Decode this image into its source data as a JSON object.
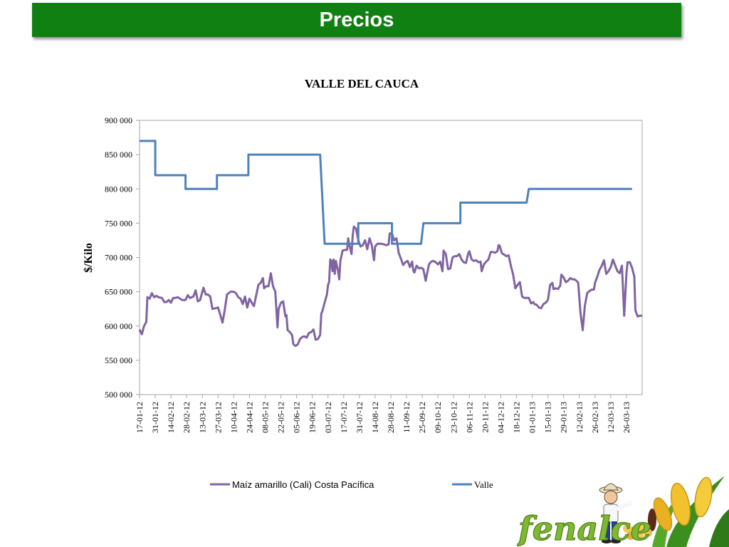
{
  "slide": {
    "title": "Precios"
  },
  "chart_data": {
    "type": "line",
    "title": "VALLE DEL CAUCA",
    "ylabel": "$/Kilo",
    "xlabel": "",
    "ylim": [
      500000,
      900000
    ],
    "yticks": [
      500000,
      550000,
      600000,
      650000,
      700000,
      750000,
      800000,
      850000,
      900000
    ],
    "ytick_labels": [
      "500 000",
      "550 000",
      "600 000",
      "650 000",
      "700 000",
      "750 000",
      "800 000",
      "850 000",
      "900 000"
    ],
    "xlim": [
      "2012-01-17",
      "2013-04-09"
    ],
    "xtick_labels": [
      "17-01-12",
      "31-01-12",
      "14-02-12",
      "28-02-12",
      "13-03-12",
      "27-03-12",
      "10-04-12",
      "24-04-12",
      "08-05-12",
      "22-05-12",
      "05-06-12",
      "19-06-12",
      "03-07-12",
      "17-07-12",
      "31-07-12",
      "14-08-12",
      "28-08-12",
      "11-09-12",
      "25-09-12",
      "09-10-12",
      "23-10-12",
      "06-11-12",
      "20-11-12",
      "04-12-12",
      "18-12-12",
      "01-01-13",
      "15-01-13",
      "29-01-13",
      "12-02-13",
      "26-02-13",
      "12-03-13",
      "26-03-13"
    ],
    "legend_position": "bottom",
    "grid": false,
    "series": [
      {
        "name": "Maíz amarillo (Cali) Costa Pacífica",
        "color": "#8064a2",
        "points": [
          [
            "2012-01-17",
            595000
          ],
          [
            "2012-01-19",
            588000
          ],
          [
            "2012-01-21",
            600000
          ],
          [
            "2012-01-23",
            606000
          ],
          [
            "2012-01-24",
            642000
          ],
          [
            "2012-01-26",
            640000
          ],
          [
            "2012-01-28",
            648000
          ],
          [
            "2012-01-30",
            642000
          ],
          [
            "2012-02-01",
            644000
          ],
          [
            "2012-02-03",
            642000
          ],
          [
            "2012-02-06",
            641000
          ],
          [
            "2012-02-08",
            635000
          ],
          [
            "2012-02-10",
            635000
          ],
          [
            "2012-02-12",
            638000
          ],
          [
            "2012-02-14",
            634000
          ],
          [
            "2012-02-16",
            641000
          ],
          [
            "2012-02-18",
            641000
          ],
          [
            "2012-02-20",
            642000
          ],
          [
            "2012-02-22",
            640000
          ],
          [
            "2012-02-24",
            638000
          ],
          [
            "2012-02-27",
            638000
          ],
          [
            "2012-02-29",
            645000
          ],
          [
            "2012-03-02",
            641000
          ],
          [
            "2012-03-05",
            643000
          ],
          [
            "2012-03-07",
            652000
          ],
          [
            "2012-03-09",
            636000
          ],
          [
            "2012-03-11",
            638000
          ],
          [
            "2012-03-14",
            656000
          ],
          [
            "2012-03-16",
            646000
          ],
          [
            "2012-03-18",
            646000
          ],
          [
            "2012-03-20",
            643000
          ],
          [
            "2012-03-22",
            625000
          ],
          [
            "2012-03-25",
            626000
          ],
          [
            "2012-03-27",
            627000
          ],
          [
            "2012-03-29",
            616000
          ],
          [
            "2012-03-31",
            605000
          ],
          [
            "2012-04-02",
            624000
          ],
          [
            "2012-04-04",
            646000
          ],
          [
            "2012-04-07",
            650000
          ],
          [
            "2012-04-10",
            650000
          ],
          [
            "2012-04-12",
            648000
          ],
          [
            "2012-04-14",
            642000
          ],
          [
            "2012-04-16",
            640000
          ],
          [
            "2012-04-18",
            632000
          ],
          [
            "2012-04-20",
            643000
          ],
          [
            "2012-04-22",
            627000
          ],
          [
            "2012-04-24",
            640000
          ],
          [
            "2012-04-26",
            634000
          ],
          [
            "2012-04-28",
            629000
          ],
          [
            "2012-04-30",
            645000
          ],
          [
            "2012-05-02",
            660000
          ],
          [
            "2012-05-04",
            663000
          ],
          [
            "2012-05-06",
            670000
          ],
          [
            "2012-05-07",
            655000
          ],
          [
            "2012-05-09",
            658000
          ],
          [
            "2012-05-11",
            658000
          ],
          [
            "2012-05-13",
            677000
          ],
          [
            "2012-05-15",
            658000
          ],
          [
            "2012-05-17",
            650000
          ],
          [
            "2012-05-19",
            598000
          ],
          [
            "2012-05-20",
            625000
          ],
          [
            "2012-05-22",
            634000
          ],
          [
            "2012-05-24",
            636000
          ],
          [
            "2012-05-26",
            614000
          ],
          [
            "2012-05-27",
            616000
          ],
          [
            "2012-05-28",
            594000
          ],
          [
            "2012-05-30",
            591000
          ],
          [
            "2012-06-01",
            587000
          ],
          [
            "2012-06-02",
            574000
          ],
          [
            "2012-06-04",
            571000
          ],
          [
            "2012-06-06",
            573000
          ],
          [
            "2012-06-08",
            581000
          ],
          [
            "2012-06-10",
            584000
          ],
          [
            "2012-06-12",
            585000
          ],
          [
            "2012-06-14",
            583000
          ],
          [
            "2012-06-16",
            590000
          ],
          [
            "2012-06-18",
            591000
          ],
          [
            "2012-06-20",
            595000
          ],
          [
            "2012-06-22",
            580000
          ],
          [
            "2012-06-24",
            581000
          ],
          [
            "2012-06-26",
            587000
          ],
          [
            "2012-06-27",
            618000
          ],
          [
            "2012-06-28",
            622000
          ],
          [
            "2012-06-30",
            634000
          ],
          [
            "2012-07-02",
            646000
          ],
          [
            "2012-07-03",
            660000
          ],
          [
            "2012-07-04",
            664000
          ],
          [
            "2012-07-05",
            697000
          ],
          [
            "2012-07-06",
            695000
          ],
          [
            "2012-07-07",
            680000
          ],
          [
            "2012-07-08",
            697000
          ],
          [
            "2012-07-09",
            676000
          ],
          [
            "2012-07-10",
            695000
          ],
          [
            "2012-07-11",
            687000
          ],
          [
            "2012-07-12",
            680000
          ],
          [
            "2012-07-13",
            668000
          ],
          [
            "2012-07-14",
            695000
          ],
          [
            "2012-07-16",
            710000
          ],
          [
            "2012-07-18",
            711000
          ],
          [
            "2012-07-20",
            711000
          ],
          [
            "2012-07-21",
            728000
          ],
          [
            "2012-07-22",
            718000
          ],
          [
            "2012-07-24",
            705000
          ],
          [
            "2012-07-25",
            732000
          ],
          [
            "2012-07-26",
            745000
          ],
          [
            "2012-07-28",
            742000
          ],
          [
            "2012-07-30",
            725000
          ],
          [
            "2012-08-01",
            716000
          ],
          [
            "2012-08-03",
            718000
          ],
          [
            "2012-08-05",
            725000
          ],
          [
            "2012-08-07",
            712000
          ],
          [
            "2012-08-09",
            728000
          ],
          [
            "2012-08-11",
            718000
          ],
          [
            "2012-08-13",
            696000
          ],
          [
            "2012-08-14",
            716000
          ],
          [
            "2012-08-16",
            720000
          ],
          [
            "2012-08-18",
            720000
          ],
          [
            "2012-08-20",
            720000
          ],
          [
            "2012-08-22",
            719000
          ],
          [
            "2012-08-24",
            718000
          ],
          [
            "2012-08-26",
            719000
          ],
          [
            "2012-08-27",
            735000
          ],
          [
            "2012-08-29",
            735000
          ],
          [
            "2012-08-31",
            725000
          ],
          [
            "2012-09-02",
            728000
          ],
          [
            "2012-09-04",
            707000
          ],
          [
            "2012-09-06",
            698000
          ],
          [
            "2012-09-08",
            689000
          ],
          [
            "2012-09-10",
            693000
          ],
          [
            "2012-09-12",
            695000
          ],
          [
            "2012-09-14",
            686000
          ],
          [
            "2012-09-16",
            694000
          ],
          [
            "2012-09-17",
            681000
          ],
          [
            "2012-09-18",
            678000
          ],
          [
            "2012-09-20",
            688000
          ],
          [
            "2012-09-22",
            684000
          ],
          [
            "2012-09-24",
            685000
          ],
          [
            "2012-09-26",
            683000
          ],
          [
            "2012-09-28",
            666000
          ],
          [
            "2012-10-01",
            690000
          ],
          [
            "2012-10-03",
            694000
          ],
          [
            "2012-10-05",
            695000
          ],
          [
            "2012-10-07",
            693000
          ],
          [
            "2012-10-09",
            690000
          ],
          [
            "2012-10-11",
            694000
          ],
          [
            "2012-10-13",
            680000
          ],
          [
            "2012-10-14",
            710000
          ],
          [
            "2012-10-16",
            705000
          ],
          [
            "2012-10-18",
            683000
          ],
          [
            "2012-10-20",
            684000
          ],
          [
            "2012-10-22",
            700000
          ],
          [
            "2012-10-24",
            702000
          ],
          [
            "2012-10-26",
            702000
          ],
          [
            "2012-10-28",
            705000
          ],
          [
            "2012-10-30",
            697000
          ],
          [
            "2012-11-01",
            693000
          ],
          [
            "2012-11-03",
            692000
          ],
          [
            "2012-11-05",
            706000
          ],
          [
            "2012-11-06",
            709000
          ],
          [
            "2012-11-08",
            697000
          ],
          [
            "2012-11-10",
            695000
          ],
          [
            "2012-11-12",
            696000
          ],
          [
            "2012-11-14",
            693000
          ],
          [
            "2012-11-16",
            694000
          ],
          [
            "2012-11-17",
            680000
          ],
          [
            "2012-11-19",
            690000
          ],
          [
            "2012-11-21",
            694000
          ],
          [
            "2012-11-23",
            697000
          ],
          [
            "2012-11-25",
            708000
          ],
          [
            "2012-11-27",
            708000
          ],
          [
            "2012-11-29",
            707000
          ],
          [
            "2012-12-01",
            709000
          ],
          [
            "2012-12-02",
            718000
          ],
          [
            "2012-12-03",
            717000
          ],
          [
            "2012-12-05",
            706000
          ],
          [
            "2012-12-07",
            704000
          ],
          [
            "2012-12-09",
            702000
          ],
          [
            "2012-12-11",
            703000
          ],
          [
            "2012-12-13",
            688000
          ],
          [
            "2012-12-15",
            675000
          ],
          [
            "2012-12-17",
            655000
          ],
          [
            "2012-12-19",
            660000
          ],
          [
            "2012-12-21",
            664000
          ],
          [
            "2012-12-23",
            643000
          ],
          [
            "2012-12-25",
            641000
          ],
          [
            "2012-12-27",
            641000
          ],
          [
            "2012-12-29",
            641000
          ],
          [
            "2012-12-31",
            633000
          ],
          [
            "2013-01-02",
            635000
          ],
          [
            "2013-01-03",
            632000
          ],
          [
            "2013-01-05",
            631000
          ],
          [
            "2013-01-07",
            627000
          ],
          [
            "2013-01-09",
            626000
          ],
          [
            "2013-01-11",
            632000
          ],
          [
            "2013-01-13",
            634000
          ],
          [
            "2013-01-15",
            638000
          ],
          [
            "2013-01-17",
            660000
          ],
          [
            "2013-01-19",
            663000
          ],
          [
            "2013-01-20",
            654000
          ],
          [
            "2013-01-22",
            655000
          ],
          [
            "2013-01-24",
            654000
          ],
          [
            "2013-01-26",
            659000
          ],
          [
            "2013-01-27",
            675000
          ],
          [
            "2013-01-29",
            671000
          ],
          [
            "2013-01-31",
            664000
          ],
          [
            "2013-02-02",
            666000
          ],
          [
            "2013-02-04",
            670000
          ],
          [
            "2013-02-06",
            668000
          ],
          [
            "2013-02-08",
            668000
          ],
          [
            "2013-02-10",
            665000
          ],
          [
            "2013-02-11",
            663000
          ],
          [
            "2013-02-13",
            620000
          ],
          [
            "2013-02-15",
            594000
          ],
          [
            "2013-02-17",
            630000
          ],
          [
            "2013-02-19",
            648000
          ],
          [
            "2013-02-21",
            651000
          ],
          [
            "2013-02-23",
            653000
          ],
          [
            "2013-02-25",
            653000
          ],
          [
            "2013-02-26",
            663000
          ],
          [
            "2013-02-28",
            672000
          ],
          [
            "2013-03-02",
            682000
          ],
          [
            "2013-03-04",
            688000
          ],
          [
            "2013-03-06",
            696000
          ],
          [
            "2013-03-08",
            676000
          ],
          [
            "2013-03-10",
            680000
          ],
          [
            "2013-03-12",
            686000
          ],
          [
            "2013-03-14",
            697000
          ],
          [
            "2013-03-16",
            688000
          ],
          [
            "2013-03-18",
            680000
          ],
          [
            "2013-03-20",
            677000
          ],
          [
            "2013-03-22",
            688000
          ],
          [
            "2013-03-24",
            615000
          ],
          [
            "2013-03-26",
            676000
          ],
          [
            "2013-03-27",
            693000
          ],
          [
            "2013-03-29",
            693000
          ],
          [
            "2013-03-31",
            685000
          ],
          [
            "2013-04-02",
            672000
          ],
          [
            "2013-04-03",
            623000
          ],
          [
            "2013-04-05",
            614000
          ],
          [
            "2013-04-07",
            615000
          ],
          [
            "2013-04-09",
            615000
          ]
        ]
      },
      {
        "name": "Valle",
        "color": "#4f81bd",
        "points": [
          [
            "2012-01-17",
            870000
          ],
          [
            "2012-01-31",
            870000
          ],
          [
            "2012-01-31",
            820000
          ],
          [
            "2012-02-27",
            820000
          ],
          [
            "2012-02-27",
            800000
          ],
          [
            "2012-03-26",
            800000
          ],
          [
            "2012-03-26",
            820000
          ],
          [
            "2012-04-23",
            820000
          ],
          [
            "2012-04-23",
            850000
          ],
          [
            "2012-06-26",
            850000
          ],
          [
            "2012-06-30",
            720000
          ],
          [
            "2012-07-30",
            720000
          ],
          [
            "2012-07-30",
            750000
          ],
          [
            "2012-08-29",
            750000
          ],
          [
            "2012-08-29",
            720000
          ],
          [
            "2012-09-24",
            720000
          ],
          [
            "2012-09-26",
            750000
          ],
          [
            "2012-10-29",
            750000
          ],
          [
            "2012-10-29",
            780000
          ],
          [
            "2012-12-27",
            780000
          ],
          [
            "2012-12-29",
            800000
          ],
          [
            "2013-03-31",
            800000
          ]
        ]
      }
    ]
  }
}
